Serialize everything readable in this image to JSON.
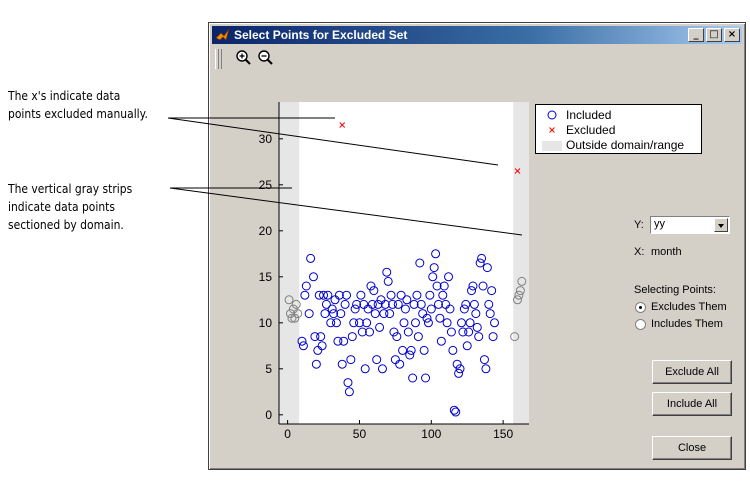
{
  "annotations": {
    "excluded_line1": "The x's indicate data",
    "excluded_line2": "points excluded manually.",
    "strips_line1": "The vertical gray strips",
    "strips_line2": "indicate data points",
    "strips_line3": "sectioned by domain."
  },
  "window": {
    "title": "Select Points for Excluded Set",
    "minimize_label": "_",
    "restore_label": "□",
    "close_label": "×"
  },
  "toolbar": {
    "zoom_in": "zoom-in-icon",
    "zoom_out": "zoom-out-icon"
  },
  "legend": {
    "included": "Included",
    "excluded": "Excluded",
    "outside": "Outside domain/range"
  },
  "controls": {
    "y_label": "Y:",
    "y_value": "yy",
    "x_label": "X:",
    "x_value": "month",
    "selecting_label": "Selecting Points:",
    "option_excludes": "Excludes Them",
    "option_includes": "Includes Them",
    "selected_option": "excludes"
  },
  "buttons": {
    "exclude_all": "Exclude All",
    "include_all": "Include All",
    "close": "Close"
  },
  "colors": {
    "included": "#0000cc",
    "excluded": "#ff0000",
    "outside_marker": "#808080",
    "strip": "#e6e6e6"
  },
  "chart_data": {
    "type": "scatter",
    "xlabel": "",
    "ylabel": "",
    "xlim": [
      -6,
      168
    ],
    "ylim": [
      -1,
      34
    ],
    "xticks": [
      0,
      50,
      100,
      150
    ],
    "yticks": [
      0,
      5,
      10,
      15,
      20,
      25,
      30
    ],
    "domain_strips": [
      [
        -6,
        8
      ],
      [
        157,
        168
      ]
    ],
    "series": [
      {
        "name": "Included",
        "marker": "circle",
        "points": [
          [
            10,
            8
          ],
          [
            11,
            7.5
          ],
          [
            12,
            13
          ],
          [
            13,
            14
          ],
          [
            15,
            11
          ],
          [
            16,
            17
          ],
          [
            18,
            15
          ],
          [
            19,
            8.5
          ],
          [
            20,
            5.5
          ],
          [
            21,
            7
          ],
          [
            22,
            13
          ],
          [
            23,
            8.5
          ],
          [
            24,
            7.5
          ],
          [
            25,
            13
          ],
          [
            26,
            11
          ],
          [
            27,
            12
          ],
          [
            28,
            13
          ],
          [
            30,
            10
          ],
          [
            31,
            11.5
          ],
          [
            32,
            11
          ],
          [
            33,
            12.5
          ],
          [
            34,
            10
          ],
          [
            35,
            8
          ],
          [
            36,
            13
          ],
          [
            37,
            11
          ],
          [
            38,
            5.5
          ],
          [
            39,
            8
          ],
          [
            40,
            12
          ],
          [
            41,
            13
          ],
          [
            42,
            3.5
          ],
          [
            43,
            2.5
          ],
          [
            44,
            6
          ],
          [
            45,
            8.5
          ],
          [
            46,
            10
          ],
          [
            47,
            11.5
          ],
          [
            48,
            12
          ],
          [
            50,
            10
          ],
          [
            51,
            13
          ],
          [
            52,
            9
          ],
          [
            53,
            12
          ],
          [
            54,
            5
          ],
          [
            55,
            10
          ],
          [
            56,
            11.5
          ],
          [
            57,
            9
          ],
          [
            58,
            14
          ],
          [
            59,
            12
          ],
          [
            60,
            13.5
          ],
          [
            61,
            11
          ],
          [
            62,
            6
          ],
          [
            63,
            12
          ],
          [
            64,
            9.5
          ],
          [
            65,
            12.5
          ],
          [
            66,
            5
          ],
          [
            67,
            11
          ],
          [
            68,
            12
          ],
          [
            69,
            15.5
          ],
          [
            70,
            14.5
          ],
          [
            71,
            11
          ],
          [
            72,
            13
          ],
          [
            73,
            12
          ],
          [
            74,
            9
          ],
          [
            75,
            6
          ],
          [
            76,
            8.5
          ],
          [
            77,
            12
          ],
          [
            78,
            5.5
          ],
          [
            79,
            13
          ],
          [
            80,
            7
          ],
          [
            81,
            10
          ],
          [
            82,
            11.5
          ],
          [
            83,
            12.5
          ],
          [
            84,
            9
          ],
          [
            85,
            6.5
          ],
          [
            86,
            7
          ],
          [
            87,
            4
          ],
          [
            88,
            12
          ],
          [
            89,
            10
          ],
          [
            90,
            13
          ],
          [
            91,
            8.5
          ],
          [
            92,
            16.5
          ],
          [
            93,
            12
          ],
          [
            94,
            11
          ],
          [
            95,
            7
          ],
          [
            96,
            4
          ],
          [
            97,
            10.5
          ],
          [
            98,
            10
          ],
          [
            99,
            13
          ],
          [
            100,
            11.5
          ],
          [
            101,
            15
          ],
          [
            102,
            16
          ],
          [
            103,
            17.5
          ],
          [
            104,
            14
          ],
          [
            105,
            12
          ],
          [
            106,
            10.5
          ],
          [
            107,
            8
          ],
          [
            108,
            13
          ],
          [
            109,
            14
          ],
          [
            110,
            12
          ],
          [
            111,
            10
          ],
          [
            112,
            15
          ],
          [
            113,
            11.5
          ],
          [
            114,
            9
          ],
          [
            115,
            7
          ],
          [
            116,
            0.5
          ],
          [
            117,
            0.3
          ],
          [
            118,
            5.5
          ],
          [
            119,
            4.5
          ],
          [
            120,
            5
          ],
          [
            121,
            10
          ],
          [
            122,
            9
          ],
          [
            123,
            11.5
          ],
          [
            124,
            12
          ],
          [
            125,
            7.5
          ],
          [
            126,
            9
          ],
          [
            127,
            10
          ],
          [
            128,
            13.5
          ],
          [
            129,
            14
          ],
          [
            130,
            12
          ],
          [
            131,
            11
          ],
          [
            132,
            9.5
          ],
          [
            133,
            8.5
          ],
          [
            134,
            16.5
          ],
          [
            135,
            17
          ],
          [
            136,
            14
          ],
          [
            137,
            6
          ],
          [
            138,
            5
          ],
          [
            139,
            16
          ],
          [
            140,
            12
          ],
          [
            141,
            11
          ],
          [
            142,
            13.5
          ],
          [
            143,
            8.5
          ],
          [
            144,
            10
          ]
        ]
      },
      {
        "name": "Excluded",
        "marker": "x",
        "points": [
          [
            38,
            31.5
          ],
          [
            160,
            26.5
          ]
        ]
      },
      {
        "name": "Outside domain/range",
        "marker": "circle",
        "points": [
          [
            1,
            12.5
          ],
          [
            2,
            11
          ],
          [
            3,
            10.5
          ],
          [
            4,
            11.5
          ],
          [
            5,
            10.5
          ],
          [
            6,
            12
          ],
          [
            7,
            11
          ],
          [
            158,
            8.5
          ],
          [
            160,
            12.5
          ],
          [
            161,
            13
          ],
          [
            162,
            13.5
          ],
          [
            163,
            14.5
          ]
        ]
      }
    ]
  }
}
